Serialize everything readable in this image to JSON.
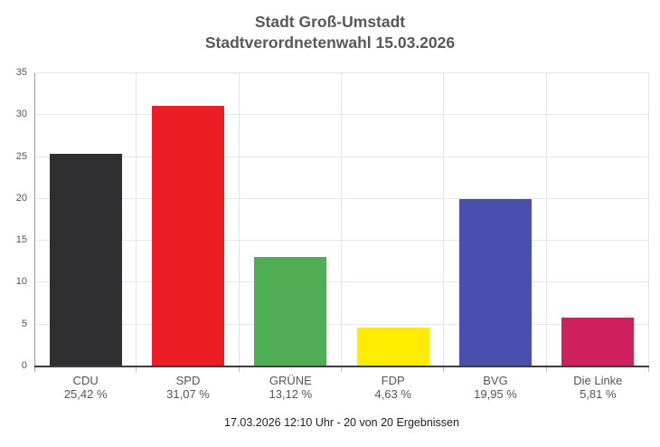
{
  "chart_data": {
    "type": "bar",
    "title": "Stadt Groß-Umstadt",
    "subtitle": "Stadtverordnetenwahl 15.03.2026",
    "categories": [
      "CDU",
      "SPD",
      "GRÜNE",
      "FDP",
      "BVG",
      "Die Linke"
    ],
    "values": [
      25.42,
      31.07,
      13.12,
      4.63,
      19.95,
      5.81
    ],
    "value_labels": [
      "25,42 %",
      "31,07 %",
      "13,12 %",
      "4,63 %",
      "19,95 %",
      "5,81 %"
    ],
    "bar_colors": [
      "#2f2f31",
      "#ee1c24",
      "#4fae54",
      "#ffec00",
      "#4a4fae",
      "#ce215e"
    ],
    "xlabel": "",
    "ylabel": "",
    "ylim": [
      0,
      35
    ],
    "yticks": [
      0,
      5,
      10,
      15,
      20,
      25,
      30,
      35
    ],
    "grid": true,
    "legend": false,
    "footer": "17.03.2026 12:10 Uhr - 20 von 20 Ergebnissen"
  },
  "colors": {
    "background": "#ffffff",
    "title": "#58585a",
    "axis_label": "#555555",
    "grid": "#e6e6e6",
    "axis_line": "#9b9b9b",
    "baseline": "#3d3d3d",
    "tick": "#bdbdbd",
    "footer_text": "#222222"
  }
}
